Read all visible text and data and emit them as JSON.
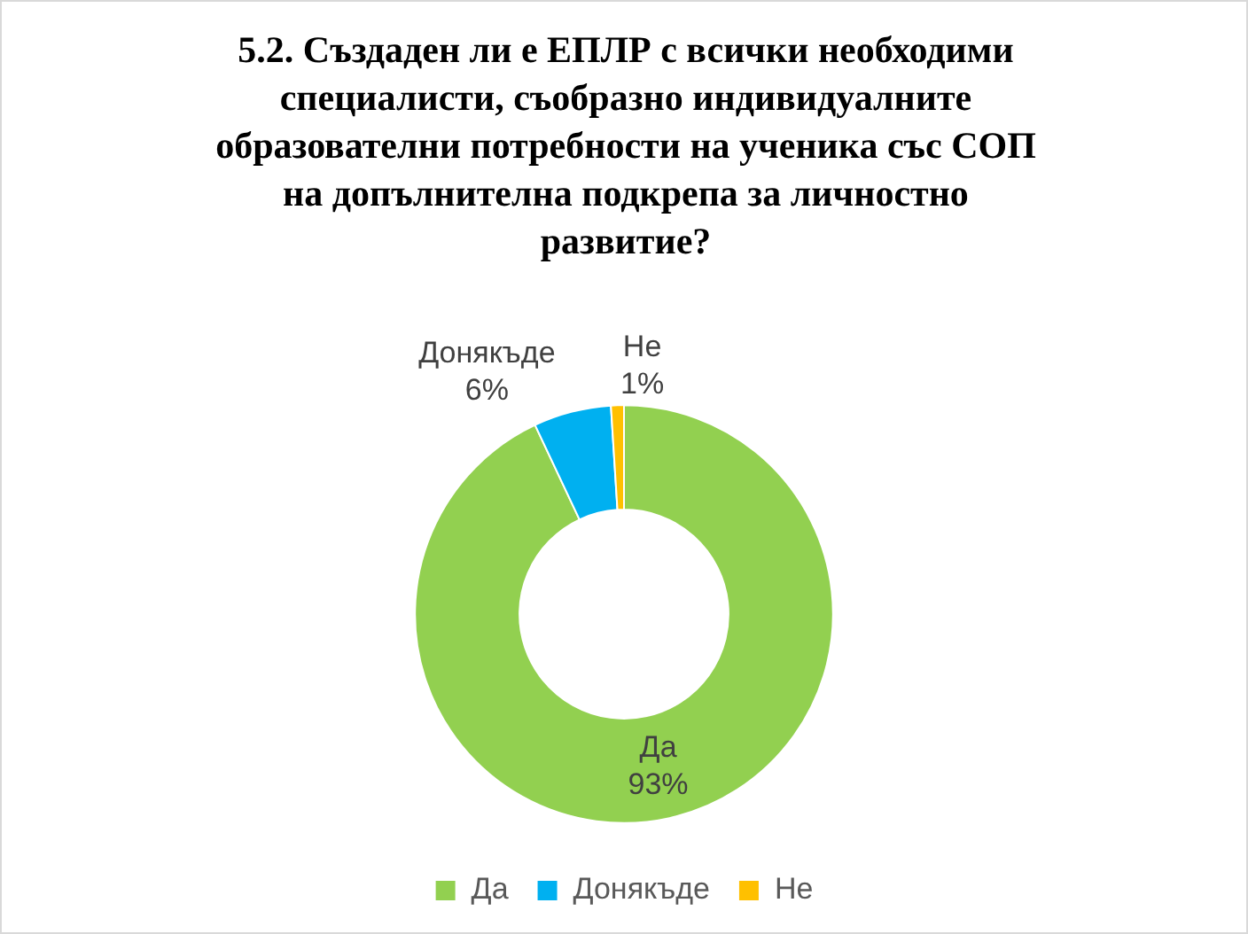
{
  "chart_data": {
    "type": "donut",
    "title": "5.2. Създаден ли е ЕПЛР с всички необходими специалисти, съобразно индивидуалните образователни потребности на ученика със СОП на допълнителна подкрепа за личностно развитие?",
    "categories": [
      "Да",
      "Донякъде",
      "Не"
    ],
    "values": [
      93,
      6,
      1
    ],
    "colors": [
      "#92d050",
      "#00b0f0",
      "#ffc000"
    ],
    "value_labels": [
      "93%",
      "6%",
      "1%"
    ],
    "legend": "bottom"
  }
}
